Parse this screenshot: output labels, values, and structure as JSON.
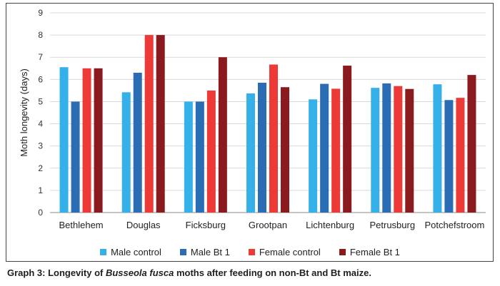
{
  "chart_data": {
    "type": "bar",
    "categories": [
      "Bethlehem",
      "Douglas",
      "Ficksburg",
      "Grootpan",
      "Lichtenburg",
      "Petrusburg",
      "Potchefstroom"
    ],
    "series": [
      {
        "name": "Male control",
        "color": "#35b0e8",
        "values": [
          6.55,
          5.42,
          5.0,
          5.37,
          5.1,
          5.62,
          5.78
        ]
      },
      {
        "name": "Male Bt 1",
        "color": "#2a6db5",
        "values": [
          5.0,
          6.3,
          5.0,
          5.85,
          5.8,
          5.82,
          5.07
        ]
      },
      {
        "name": "Female control",
        "color": "#ee3a36",
        "values": [
          6.5,
          8.0,
          5.5,
          6.67,
          5.58,
          5.7,
          5.17
        ]
      },
      {
        "name": "Female Bt 1",
        "color": "#8b1a1e",
        "values": [
          6.5,
          8.0,
          7.0,
          5.65,
          6.62,
          5.57,
          6.2
        ]
      }
    ],
    "ylabel": "Moth longevity (days)",
    "xlabel": "",
    "ylim": [
      0,
      9
    ],
    "yticks": [
      0,
      1,
      2,
      3,
      4,
      5,
      6,
      7,
      8,
      9
    ],
    "grid": "horizontal",
    "legend": "bottom"
  },
  "caption": {
    "prefix": "Graph 3: Longevity of ",
    "species": "Busseola fusca",
    "suffix": " moths after feeding on non-Bt and Bt maize."
  }
}
